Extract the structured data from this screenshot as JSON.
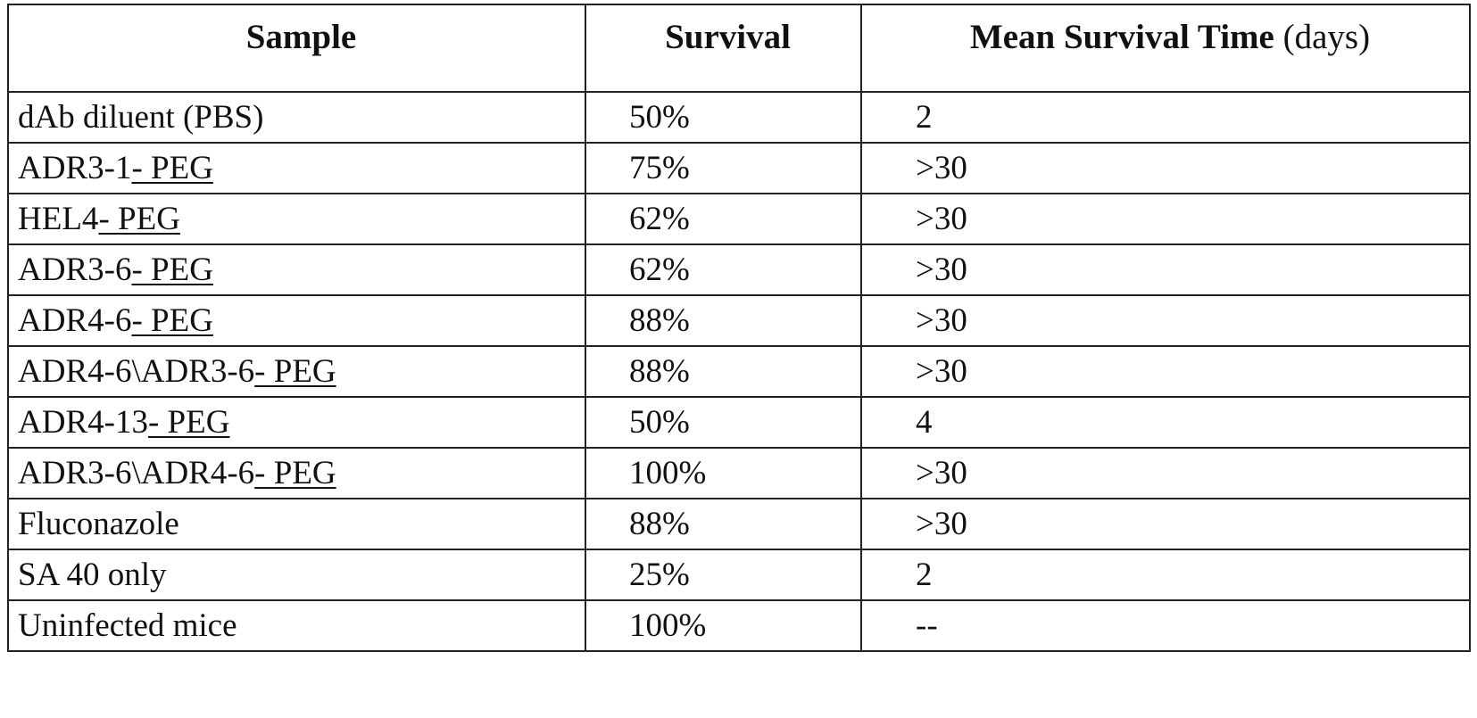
{
  "table": {
    "headers": {
      "sample": "Sample",
      "survival": "Survival",
      "mst_bold": "Mean Survival Time",
      "mst_unit": " (days)"
    },
    "rows": [
      {
        "sample": "dAb diluent (PBS)",
        "sample_suffix": "",
        "survival": "50%",
        "mst": "2"
      },
      {
        "sample": "ADR3-1",
        "sample_suffix": "- PEG",
        "survival": "75%",
        "mst": ">30"
      },
      {
        "sample": "HEL4",
        "sample_suffix": "- PEG",
        "survival": "62%",
        "mst": ">30"
      },
      {
        "sample": "ADR3-6",
        "sample_suffix": "- PEG",
        "survival": "62%",
        "mst": ">30"
      },
      {
        "sample": "ADR4-6",
        "sample_suffix": "- PEG",
        "survival": "88%",
        "mst": ">30"
      },
      {
        "sample": "ADR4-6\\ADR3-6",
        "sample_suffix": "- PEG",
        "survival": "88%",
        "mst": ">30"
      },
      {
        "sample": "ADR4-13",
        "sample_suffix": "- PEG",
        "survival": "50%",
        "mst": "4"
      },
      {
        "sample": "ADR3-6\\ADR4-6",
        "sample_suffix": "- PEG",
        "survival": "100%",
        "mst": ">30"
      },
      {
        "sample": "Fluconazole",
        "sample_suffix": "",
        "survival": "88%",
        "mst": ">30"
      },
      {
        "sample": "SA 40 only",
        "sample_suffix": "",
        "survival": "25%",
        "mst": "2"
      },
      {
        "sample": "Uninfected mice",
        "sample_suffix": "",
        "survival": "100%",
        "mst": "--"
      }
    ]
  }
}
